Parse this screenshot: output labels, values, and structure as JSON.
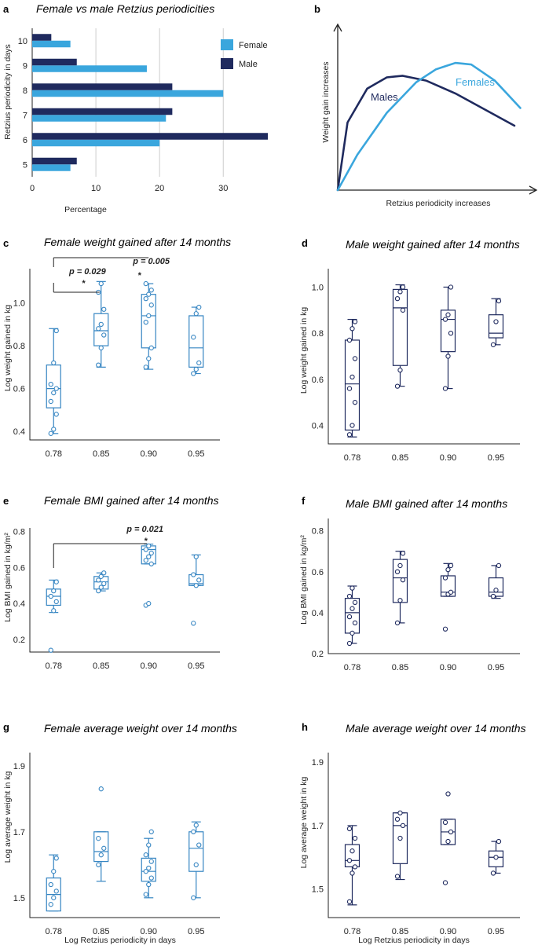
{
  "colors": {
    "female": "#3AA6DD",
    "female_box": "#3585C2",
    "male": "#1F2A5E",
    "axis": "#222222",
    "grid": "#CCCCCC"
  },
  "panels": {
    "a": {
      "label": "a"
    },
    "b": {
      "label": "b"
    },
    "c": {
      "label": "c"
    },
    "d": {
      "label": "d"
    },
    "e": {
      "label": "e"
    },
    "f": {
      "label": "f"
    },
    "g": {
      "label": "g"
    },
    "h": {
      "label": "h"
    }
  },
  "chart_data": [
    {
      "id": "a",
      "type": "bar",
      "orientation": "horizontal",
      "title": "Female vs male Retzius periodicities",
      "xlabel": "Percentage",
      "ylabel": "Retzius periodicity in days",
      "categories": [
        "5",
        "6",
        "7",
        "8",
        "9",
        "10"
      ],
      "xlim": [
        0,
        37
      ],
      "xticks": [
        0,
        10,
        20,
        30
      ],
      "grid": true,
      "legend": "top-right",
      "series": [
        {
          "name": "Female",
          "color": "#3AA6DD",
          "values": [
            6,
            20,
            21,
            30,
            18,
            6
          ]
        },
        {
          "name": "Male",
          "color": "#1F2A5E",
          "values": [
            7,
            37,
            22,
            22,
            7,
            3
          ]
        }
      ]
    },
    {
      "id": "b",
      "type": "line",
      "schematic": true,
      "xlabel": "Retzius periodicity increases",
      "ylabel": "Weight gain increases",
      "series": [
        {
          "name": "Males",
          "color": "#1F2A5E",
          "x": [
            0,
            0.05,
            0.15,
            0.25,
            0.33,
            0.45,
            0.6,
            0.75,
            0.9
          ],
          "y": [
            0,
            0.42,
            0.63,
            0.7,
            0.71,
            0.68,
            0.6,
            0.5,
            0.4
          ]
        },
        {
          "name": "Females",
          "color": "#3AA6DD",
          "x": [
            0,
            0.1,
            0.25,
            0.4,
            0.5,
            0.6,
            0.68,
            0.8,
            0.93
          ],
          "y": [
            0,
            0.22,
            0.48,
            0.67,
            0.75,
            0.79,
            0.78,
            0.68,
            0.51
          ]
        }
      ]
    },
    {
      "id": "c",
      "type": "box",
      "title": "Female weight gained after 14 months",
      "ylabel": "Log weight gained in kg",
      "xlabel": "",
      "categories": [
        "0.78",
        "0.85",
        "0.90",
        "0.95"
      ],
      "ylim": [
        0.36,
        1.16
      ],
      "yticks": [
        "0.4",
        "0.6",
        "0.8",
        "1.0"
      ],
      "series_color": "female",
      "boxes": [
        {
          "min": 0.39,
          "q1": 0.51,
          "median": 0.6,
          "q3": 0.71,
          "max": 0.88,
          "points": [
            0.39,
            0.41,
            0.48,
            0.54,
            0.58,
            0.6,
            0.62,
            0.72,
            0.87
          ]
        },
        {
          "min": 0.7,
          "q1": 0.8,
          "median": 0.87,
          "q3": 0.95,
          "max": 1.1,
          "points": [
            0.71,
            0.79,
            0.85,
            0.88,
            0.9,
            0.97,
            1.05,
            1.09
          ]
        },
        {
          "min": 0.69,
          "q1": 0.79,
          "median": 0.94,
          "q3": 1.04,
          "max": 1.09,
          "points": [
            0.7,
            0.74,
            0.79,
            0.91,
            0.94,
            0.99,
            1.02,
            1.04,
            1.06,
            1.09
          ]
        },
        {
          "min": 0.67,
          "q1": 0.7,
          "median": 0.79,
          "q3": 0.94,
          "max": 0.98,
          "points": [
            0.67,
            0.69,
            0.72,
            0.84,
            0.95,
            0.98
          ]
        }
      ],
      "annotations": [
        {
          "text": "p = 0.029",
          "from": 0,
          "to": 1
        },
        {
          "text": "p = 0.005",
          "from": 0,
          "to": 2
        }
      ]
    },
    {
      "id": "d",
      "type": "box",
      "title": "Male weight gained after 14 months",
      "ylabel": "Log weight gained in kg",
      "xlabel": "",
      "categories": [
        "0.78",
        "0.85",
        "0.90",
        "0.95"
      ],
      "ylim": [
        0.32,
        1.08
      ],
      "yticks": [
        "0.4",
        "0.6",
        "0.8",
        "1.0"
      ],
      "series_color": "male",
      "boxes": [
        {
          "min": 0.35,
          "q1": 0.38,
          "median": 0.58,
          "q3": 0.77,
          "max": 0.86,
          "points": [
            0.36,
            0.4,
            0.5,
            0.56,
            0.61,
            0.69,
            0.77,
            0.82,
            0.85
          ]
        },
        {
          "min": 0.57,
          "q1": 0.66,
          "median": 0.91,
          "q3": 0.99,
          "max": 1.01,
          "points": [
            0.57,
            0.64,
            0.9,
            0.95,
            0.98,
            1.0
          ]
        },
        {
          "min": 0.56,
          "q1": 0.72,
          "median": 0.86,
          "q3": 0.9,
          "max": 1.0,
          "points": [
            0.56,
            0.7,
            0.8,
            0.86,
            0.88,
            1.0
          ]
        },
        {
          "min": 0.75,
          "q1": 0.78,
          "median": 0.8,
          "q3": 0.88,
          "max": 0.95,
          "points": [
            0.75,
            0.85,
            0.94
          ]
        }
      ],
      "annotations": []
    },
    {
      "id": "e",
      "type": "box",
      "title": "Female BMI gained after 14 months",
      "ylabel": "Log BMI gained in kg/m²",
      "xlabel": "",
      "categories": [
        "0.78",
        "0.85",
        "0.90",
        "0.95"
      ],
      "ylim": [
        0.13,
        0.82
      ],
      "yticks": [
        "0.2",
        "0.4",
        "0.6",
        "0.8"
      ],
      "series_color": "female",
      "boxes": [
        {
          "min": 0.35,
          "q1": 0.39,
          "median": 0.44,
          "q3": 0.48,
          "max": 0.53,
          "points": [
            0.14,
            0.36,
            0.41,
            0.44,
            0.47,
            0.52
          ]
        },
        {
          "min": 0.47,
          "q1": 0.48,
          "median": 0.52,
          "q3": 0.55,
          "max": 0.57,
          "points": [
            0.47,
            0.49,
            0.51,
            0.53,
            0.55,
            0.57
          ]
        },
        {
          "min": 0.62,
          "q1": 0.62,
          "median": 0.7,
          "q3": 0.72,
          "max": 0.73,
          "points": [
            0.39,
            0.4,
            0.62,
            0.64,
            0.66,
            0.68,
            0.7,
            0.72
          ]
        },
        {
          "min": 0.5,
          "q1": 0.5,
          "median": 0.51,
          "q3": 0.56,
          "max": 0.67,
          "points": [
            0.29,
            0.5,
            0.53,
            0.56,
            0.66
          ]
        }
      ],
      "annotations": [
        {
          "text": "p = 0.021",
          "from": 0,
          "to": 2
        }
      ]
    },
    {
      "id": "f",
      "type": "box",
      "title": "Male BMI gained after 14 months",
      "ylabel": "Log BMI gained in kg/m²",
      "xlabel": "",
      "categories": [
        "0.78",
        "0.85",
        "0.90",
        "0.95"
      ],
      "ylim": [
        0.2,
        0.86
      ],
      "yticks": [
        "0.2",
        "0.4",
        "0.6",
        "0.8"
      ],
      "series_color": "male",
      "boxes": [
        {
          "min": 0.25,
          "q1": 0.3,
          "median": 0.4,
          "q3": 0.47,
          "max": 0.53,
          "points": [
            0.25,
            0.3,
            0.35,
            0.38,
            0.42,
            0.45,
            0.48,
            0.52
          ]
        },
        {
          "min": 0.35,
          "q1": 0.45,
          "median": 0.57,
          "q3": 0.66,
          "max": 0.7,
          "points": [
            0.35,
            0.46,
            0.56,
            0.6,
            0.63,
            0.69
          ]
        },
        {
          "min": 0.48,
          "q1": 0.48,
          "median": 0.5,
          "q3": 0.58,
          "max": 0.64,
          "points": [
            0.32,
            0.49,
            0.5,
            0.57,
            0.61,
            0.63
          ]
        },
        {
          "min": 0.47,
          "q1": 0.48,
          "median": 0.5,
          "q3": 0.57,
          "max": 0.63,
          "points": [
            0.48,
            0.51,
            0.63
          ]
        }
      ],
      "annotations": []
    },
    {
      "id": "g",
      "type": "box",
      "title": "Female average weight over 14 months",
      "ylabel": "Log average weight in kg",
      "xlabel": "Log Retzius periodicity in days",
      "categories": [
        "0.78",
        "0.85",
        "0.90",
        "0.95"
      ],
      "ylim": [
        1.44,
        1.94
      ],
      "yticks": [
        "1.5",
        "1.7",
        "1.9"
      ],
      "series_color": "female",
      "boxes": [
        {
          "min": 1.46,
          "q1": 1.46,
          "median": 1.51,
          "q3": 1.56,
          "max": 1.63,
          "points": [
            1.48,
            1.5,
            1.52,
            1.54,
            1.58,
            1.62
          ]
        },
        {
          "min": 1.55,
          "q1": 1.61,
          "median": 1.64,
          "q3": 1.7,
          "max": 1.7,
          "points": [
            1.6,
            1.63,
            1.65,
            1.68,
            1.83
          ]
        },
        {
          "min": 1.5,
          "q1": 1.55,
          "median": 1.58,
          "q3": 1.62,
          "max": 1.68,
          "points": [
            1.51,
            1.54,
            1.56,
            1.58,
            1.59,
            1.61,
            1.63,
            1.66,
            1.7
          ]
        },
        {
          "min": 1.5,
          "q1": 1.58,
          "median": 1.65,
          "q3": 1.7,
          "max": 1.73,
          "points": [
            1.5,
            1.6,
            1.66,
            1.7,
            1.72
          ]
        }
      ],
      "annotations": []
    },
    {
      "id": "h",
      "type": "box",
      "title": "Male average weight over 14 months",
      "ylabel": "Log average weight in kg",
      "xlabel": "Log Retzius periodicity in days",
      "categories": [
        "0.78",
        "0.85",
        "0.90",
        "0.95"
      ],
      "ylim": [
        1.41,
        1.93
      ],
      "yticks": [
        "1.5",
        "1.7",
        "1.9"
      ],
      "series_color": "male",
      "boxes": [
        {
          "min": 1.45,
          "q1": 1.57,
          "median": 1.59,
          "q3": 1.64,
          "max": 1.7,
          "points": [
            1.46,
            1.55,
            1.57,
            1.59,
            1.62,
            1.66,
            1.69
          ]
        },
        {
          "min": 1.53,
          "q1": 1.58,
          "median": 1.7,
          "q3": 1.74,
          "max": 1.74,
          "points": [
            1.54,
            1.66,
            1.7,
            1.72,
            1.74
          ]
        },
        {
          "min": 1.64,
          "q1": 1.64,
          "median": 1.68,
          "q3": 1.72,
          "max": 1.72,
          "points": [
            1.52,
            1.65,
            1.68,
            1.71,
            1.8
          ]
        },
        {
          "min": 1.55,
          "q1": 1.57,
          "median": 1.6,
          "q3": 1.62,
          "max": 1.65,
          "points": [
            1.55,
            1.6,
            1.65
          ]
        }
      ],
      "annotations": []
    }
  ]
}
